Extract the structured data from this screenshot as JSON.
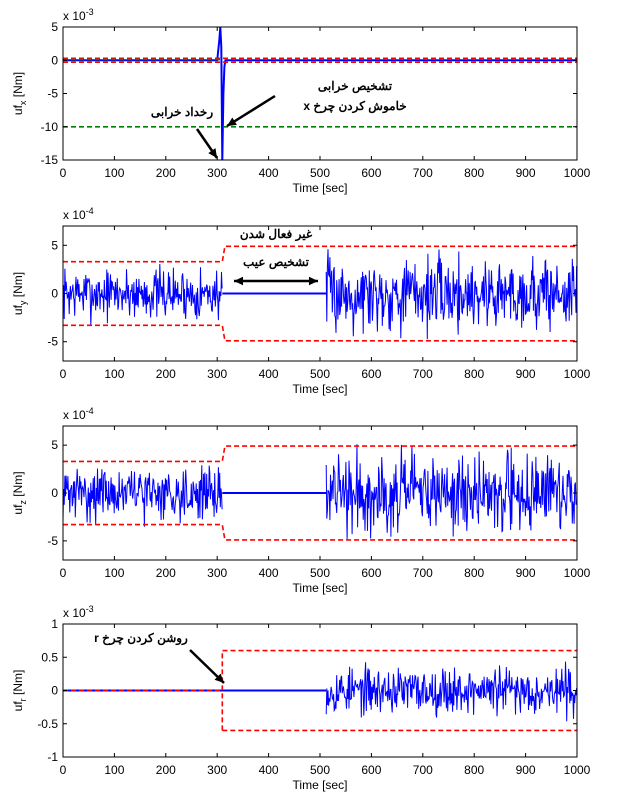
{
  "chart_data": [
    {
      "type": "line",
      "ylabel_main": "uf",
      "ylabel_sub": "x",
      "ylabel_unit": " [Nm]",
      "xlabel": "Time [sec]",
      "exponent_base": "x 10",
      "exponent_power": "-3",
      "xlim": [
        0,
        1000
      ],
      "ylim": [
        -15,
        5
      ],
      "xticks": [
        "0",
        "100",
        "200",
        "300",
        "400",
        "500",
        "600",
        "700",
        "800",
        "900",
        "1000"
      ],
      "yticks": [
        {
          "v": 5,
          "t": "5"
        },
        {
          "v": 0,
          "t": "0"
        },
        {
          "v": -5,
          "t": "-5"
        },
        {
          "v": -10,
          "t": "-10"
        },
        {
          "v": -15,
          "t": "-15"
        }
      ],
      "series": [
        {
          "style": "signal",
          "color": "#0000ff",
          "x": [
            0,
            300,
            304,
            306,
            308,
            310,
            312,
            314,
            316,
            318,
            320,
            1000
          ],
          "y": [
            0,
            0,
            3,
            5,
            2,
            -15,
            -5,
            -1,
            0,
            0,
            0,
            0
          ]
        },
        {
          "style": "threshold",
          "color": "#ff0000",
          "x": [
            0,
            1000
          ],
          "y": [
            0.3,
            0.3
          ]
        },
        {
          "style": "threshold",
          "color": "#ff0000",
          "x": [
            0,
            1000
          ],
          "y": [
            -0.3,
            -0.3
          ]
        },
        {
          "style": "threshold",
          "color": "#008000",
          "x": [
            0,
            310
          ],
          "y": [
            0.1,
            0.1
          ]
        },
        {
          "style": "threshold",
          "color": "#008000",
          "x": [
            0,
            1000
          ],
          "y": [
            -10,
            -10
          ]
        }
      ],
      "annotations": [
        {
          "lines": [
            "تشخیص خرابی",
            "خاموش کردن چرخ x"
          ],
          "anchor": "left"
        },
        {
          "lines": [
            "رخداد خرابی"
          ],
          "anchor": "left"
        }
      ]
    },
    {
      "type": "line",
      "ylabel_main": "uf",
      "ylabel_sub": "y",
      "ylabel_unit": " [Nm]",
      "xlabel": "Time [sec]",
      "exponent_base": "x 10",
      "exponent_power": "-4",
      "xlim": [
        0,
        1000
      ],
      "ylim": [
        -7,
        7
      ],
      "xticks": [
        "0",
        "100",
        "200",
        "300",
        "400",
        "500",
        "600",
        "700",
        "800",
        "900",
        "1000"
      ],
      "yticks": [
        {
          "v": 5,
          "t": "5"
        },
        {
          "v": 0,
          "t": "0"
        },
        {
          "v": -5,
          "t": "-5"
        }
      ],
      "series": [
        {
          "style": "noise",
          "color": "#0000ff",
          "segments": [
            [
              0,
              310
            ],
            [
              512,
              1000
            ]
          ],
          "amp": [
            1.3,
            1.9
          ],
          "seed": 7
        },
        {
          "style": "flat",
          "color": "#0000ff",
          "x": [
            310,
            512
          ],
          "y": [
            0,
            0
          ]
        },
        {
          "style": "threshold",
          "color": "#ff0000",
          "x": [
            0,
            310,
            315,
            1000
          ],
          "y": [
            3.3,
            3.3,
            4.9,
            4.9
          ]
        },
        {
          "style": "threshold",
          "color": "#ff0000",
          "x": [
            0,
            310,
            315,
            1000
          ],
          "y": [
            -3.3,
            -3.3,
            -4.9,
            -4.9
          ]
        }
      ],
      "annotations": [
        {
          "lines": [
            "غیر فعال شدن"
          ],
          "anchor": "center"
        },
        {
          "lines": [
            "تشخیص عیب"
          ],
          "anchor": "center"
        }
      ]
    },
    {
      "type": "line",
      "ylabel_main": "uf",
      "ylabel_sub": "z",
      "ylabel_unit": " [Nm]",
      "xlabel": "Time [sec]",
      "exponent_base": "x 10",
      "exponent_power": "-4",
      "xlim": [
        0,
        1000
      ],
      "ylim": [
        -7,
        7
      ],
      "xticks": [
        "0",
        "100",
        "200",
        "300",
        "400",
        "500",
        "600",
        "700",
        "800",
        "900",
        "1000"
      ],
      "yticks": [
        {
          "v": 5,
          "t": "5"
        },
        {
          "v": 0,
          "t": "0"
        },
        {
          "v": -5,
          "t": "-5"
        }
      ],
      "series": [
        {
          "style": "noise",
          "color": "#0000ff",
          "segments": [
            [
              0,
              310
            ],
            [
              512,
              1000
            ]
          ],
          "amp": [
            1.3,
            2.0
          ],
          "seed": 31
        },
        {
          "style": "flat",
          "color": "#0000ff",
          "x": [
            310,
            512
          ],
          "y": [
            0,
            0
          ]
        },
        {
          "style": "threshold",
          "color": "#ff0000",
          "x": [
            0,
            310,
            315,
            1000
          ],
          "y": [
            3.3,
            3.3,
            4.9,
            4.9
          ]
        },
        {
          "style": "threshold",
          "color": "#ff0000",
          "x": [
            0,
            310,
            315,
            1000
          ],
          "y": [
            -3.3,
            -3.3,
            -4.9,
            -4.9
          ]
        }
      ],
      "annotations": []
    },
    {
      "type": "line",
      "ylabel_main": "uf",
      "ylabel_sub": "r",
      "ylabel_unit": " [Nm]",
      "xlabel": "Time [sec]",
      "exponent_base": "x 10",
      "exponent_power": "-3",
      "xlim": [
        0,
        1000
      ],
      "ylim": [
        -1,
        1
      ],
      "xticks": [
        "0",
        "100",
        "200",
        "300",
        "400",
        "500",
        "600",
        "700",
        "800",
        "900",
        "1000"
      ],
      "yticks": [
        {
          "v": 1,
          "t": "1"
        },
        {
          "v": 0.5,
          "t": "0.5"
        },
        {
          "v": 0,
          "t": "0"
        },
        {
          "v": -0.5,
          "t": "-0.5"
        },
        {
          "v": -1,
          "t": "-1"
        }
      ],
      "series": [
        {
          "style": "flat",
          "color": "#0000ff",
          "x": [
            0,
            512
          ],
          "y": [
            0,
            0
          ]
        },
        {
          "style": "noise",
          "color": "#0000ff",
          "segments": [
            [
              512,
              1000
            ]
          ],
          "amp": [
            0.17,
            0.17
          ],
          "seed": 53
        },
        {
          "style": "threshold",
          "color": "#ff0000",
          "x": [
            0,
            310
          ],
          "y": [
            0,
            0
          ]
        },
        {
          "style": "threshold",
          "color": "#ff0000",
          "x": [
            310,
            310,
            1000
          ],
          "y": [
            -0.6,
            0.6,
            0.6
          ]
        },
        {
          "style": "threshold",
          "color": "#ff0000",
          "x": [
            310,
            1000
          ],
          "y": [
            -0.6,
            -0.6
          ]
        }
      ],
      "annotations": [
        {
          "lines": [
            "روشن کردن چرخ r"
          ],
          "anchor": "right"
        }
      ]
    }
  ]
}
